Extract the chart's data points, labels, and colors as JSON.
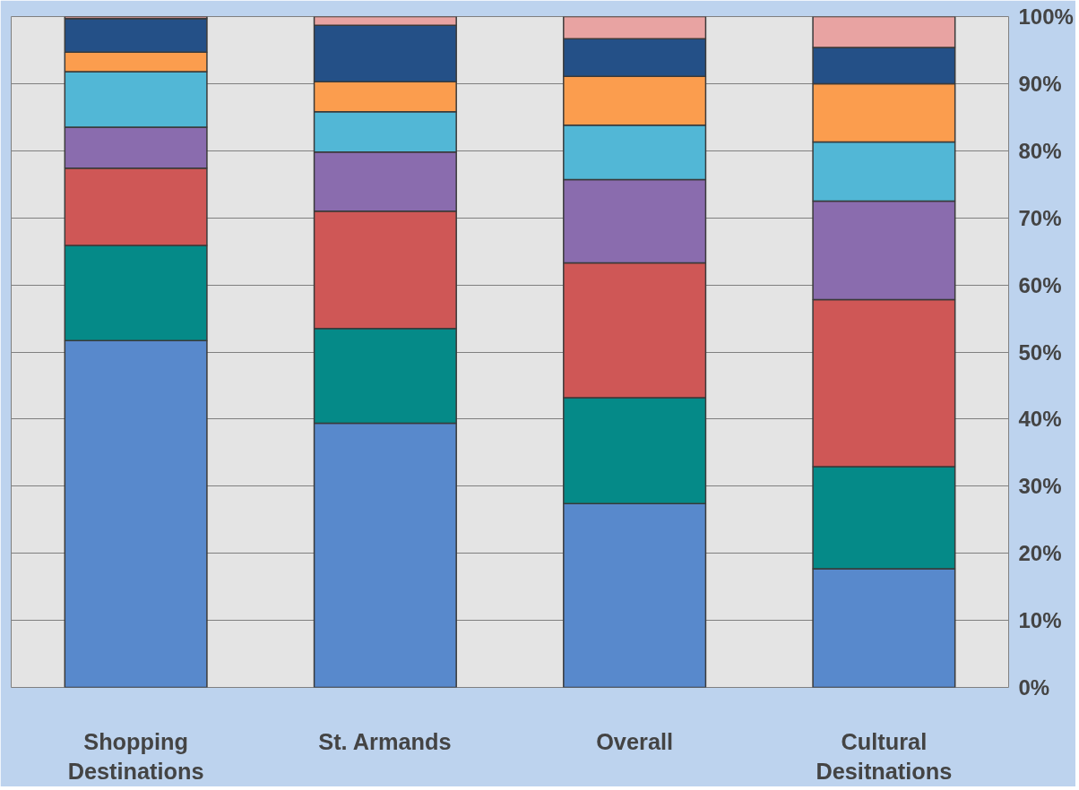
{
  "chart_data": {
    "type": "bar",
    "stacked": true,
    "categories": [
      "Shopping\nDestinations",
      "St. Armands",
      "Overall",
      "Cultural\nDesitnations"
    ],
    "series": [
      {
        "color": "#5889cc",
        "values": [
          51.7,
          39.4,
          27.4,
          17.7
        ]
      },
      {
        "color": "#058a88",
        "values": [
          14.2,
          14.1,
          15.8,
          15.2
        ]
      },
      {
        "color": "#cf5756",
        "values": [
          11.5,
          17.5,
          20.1,
          24.9
        ]
      },
      {
        "color": "#8a6cae",
        "values": [
          6.1,
          8.8,
          12.4,
          14.7
        ]
      },
      {
        "color": "#52b7d6",
        "values": [
          8.3,
          6.0,
          8.1,
          8.8
        ]
      },
      {
        "color": "#fb9d4e",
        "values": [
          2.9,
          4.5,
          7.3,
          8.7
        ]
      },
      {
        "color": "#245087",
        "values": [
          5.0,
          8.4,
          5.6,
          5.4
        ]
      },
      {
        "color": "#e8a3a2",
        "values": [
          0.3,
          1.3,
          3.3,
          4.6
        ]
      }
    ],
    "ylim": [
      0,
      100
    ],
    "yticks": [
      {
        "value": 0,
        "label": "0%"
      },
      {
        "value": 10,
        "label": "10%"
      },
      {
        "value": 20,
        "label": "20%"
      },
      {
        "value": 30,
        "label": "30%"
      },
      {
        "value": 40,
        "label": "40%"
      },
      {
        "value": 50,
        "label": "50%"
      },
      {
        "value": 60,
        "label": "60%"
      },
      {
        "value": 70,
        "label": "70%"
      },
      {
        "value": 80,
        "label": "80%"
      },
      {
        "value": 90,
        "label": "90%"
      },
      {
        "value": 100,
        "label": "100%"
      }
    ],
    "grid": "y"
  }
}
